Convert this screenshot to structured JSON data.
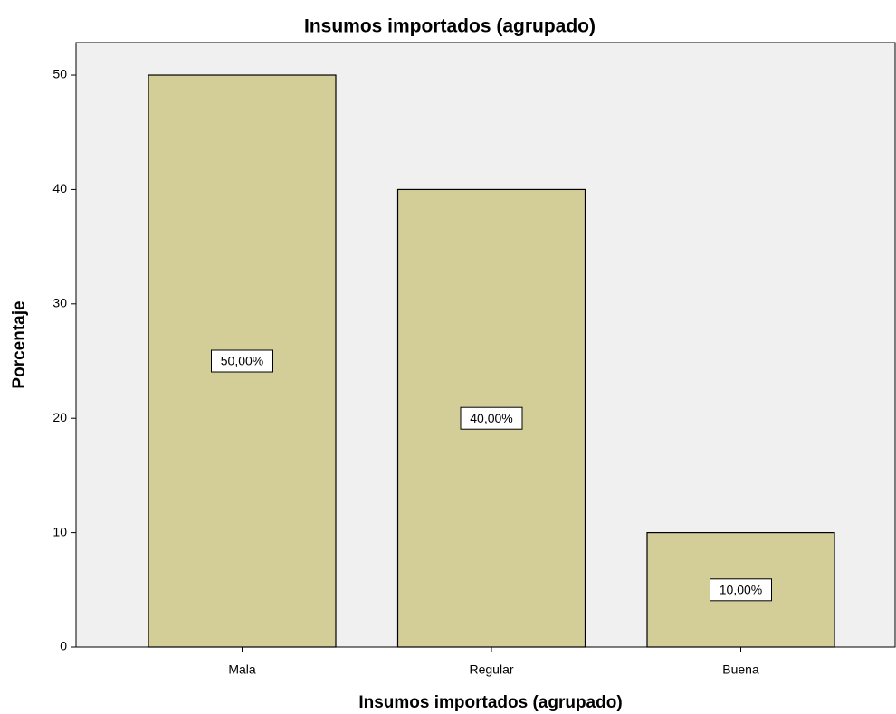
{
  "chart_data": {
    "type": "bar",
    "title": "Insumos importados (agrupado)",
    "x_label": "Insumos importados (agrupado)",
    "y_label": "Porcentaje",
    "categories": [
      "Mala",
      "Regular",
      "Buena"
    ],
    "values": [
      50,
      40,
      10
    ],
    "value_labels": [
      "50,00%",
      "40,00%",
      "10,00%"
    ],
    "color": "#d3ce97",
    "ylim": [
      0,
      52.85
    ],
    "yticks": [
      0,
      10,
      20,
      30,
      40,
      50
    ],
    "grid": false
  }
}
